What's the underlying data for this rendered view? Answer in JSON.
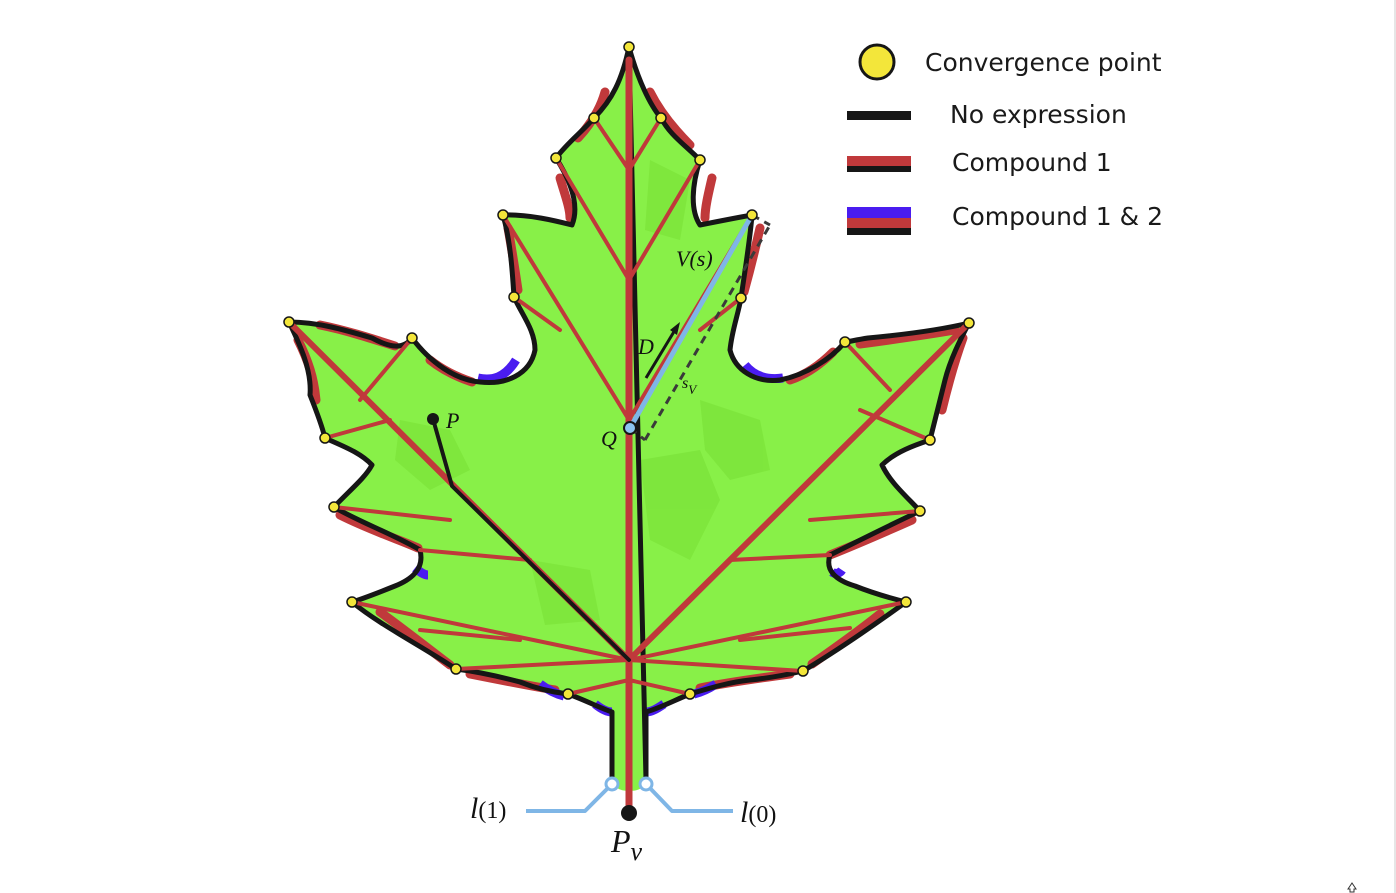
{
  "legend": {
    "convergence_point": "Convergence point",
    "no_expression": "No expression",
    "compound_1": "Compound 1",
    "compound_1_2": "Compound 1 & 2"
  },
  "labels": {
    "V": "V",
    "V_arg": "(s)",
    "D": "D",
    "sv_main": "s",
    "sv_sub": "V",
    "Q": "Q",
    "P": "P",
    "l1_main": "l",
    "l1_sub": "(1)",
    "l0_main": "l",
    "l0_sub": "(0)",
    "Pv_main": "P",
    "Pv_sub": "v"
  },
  "colors": {
    "leaf_fill": "#88f048",
    "leaf_dark": "#7ee53c",
    "vein": "#c0393b",
    "outline": "#161616",
    "compound2": "#4a1cf0",
    "convergence": "#f3e63a",
    "blue_line": "#7fb6e6"
  }
}
